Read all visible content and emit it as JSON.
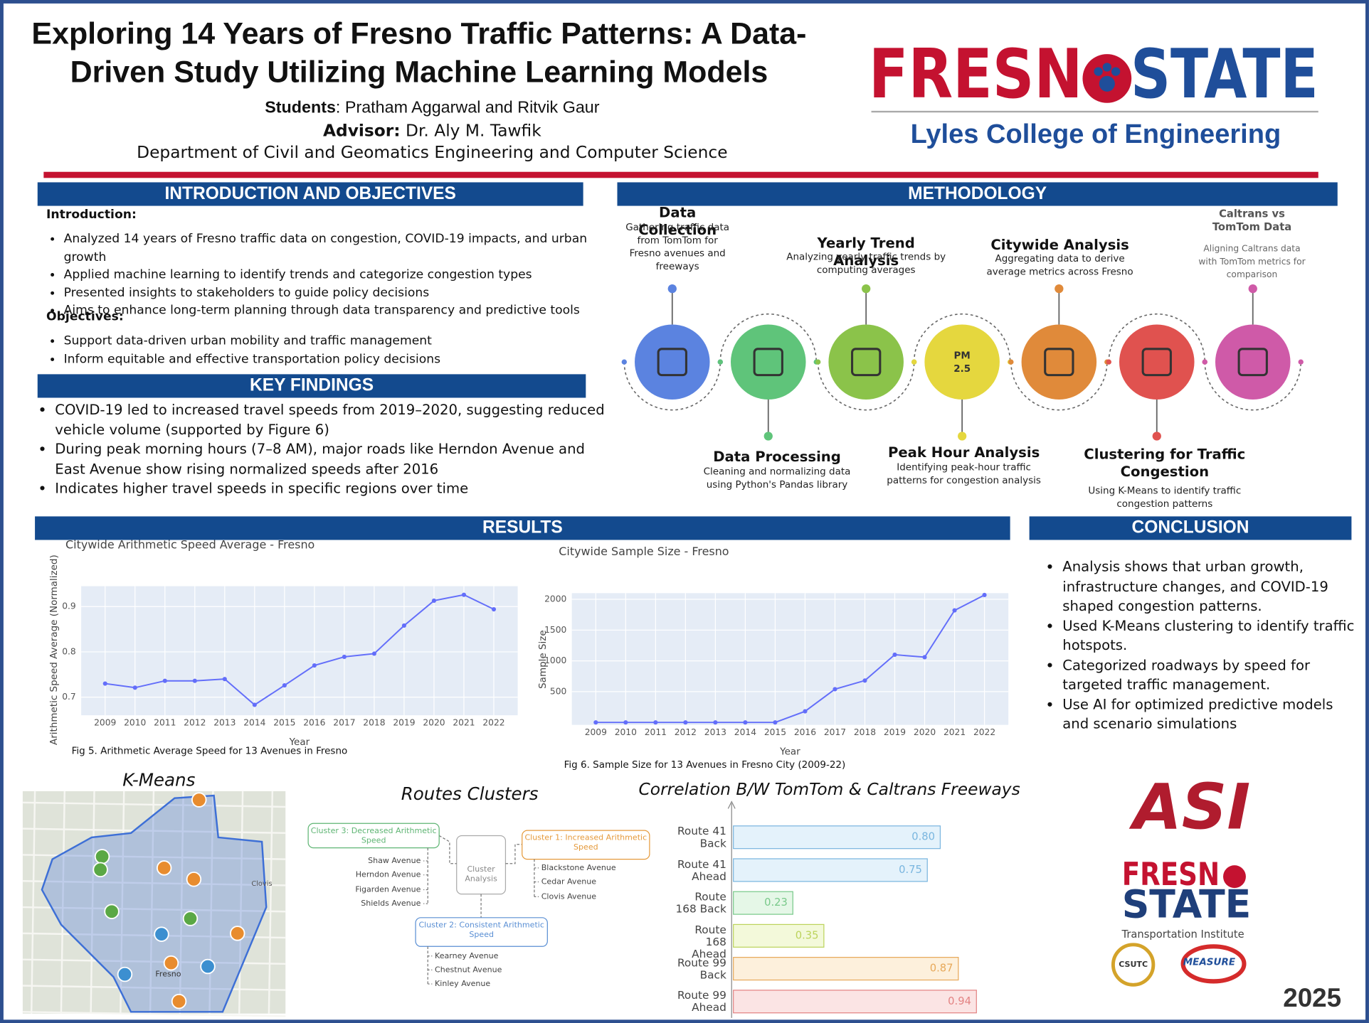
{
  "header": {
    "title": "Exploring 14 Years of Fresno Traffic Patterns: A Data-Driven Study Utilizing Machine Learning Models",
    "students_label": "Students",
    "students": ": Pratham Aggarwal and Ritvik Gaur",
    "advisor_label": "Advisor:",
    "advisor": " Dr. Aly M. Tawfik",
    "department": "Department of Civil and Geomatics Engineering and Computer Science",
    "logo": [
      "FRESN",
      "STATE"
    ],
    "college": "Lyles College of Engineering"
  },
  "introduction": {
    "heading": "INTRODUCTION AND OBJECTIVES",
    "intro_label": "Introduction:",
    "intro_items": [
      "Analyzed 14 years of Fresno traffic data on congestion, COVID-19 impacts, and urban growth",
      "Applied machine learning to identify trends and categorize congestion types",
      "Presented insights to stakeholders to guide policy decisions",
      "Aims to enhance long-term planning through data transparency and predictive tools"
    ],
    "objectives_label": "Objectives:",
    "objective_items": [
      "Support data-driven urban mobility and traffic management",
      "Inform equitable and effective transportation policy decisions"
    ]
  },
  "key_findings": {
    "heading": "KEY FINDINGS",
    "items": [
      "COVID-19 led to increased travel speeds from 2019–2020, suggesting reduced vehicle volume (supported by Figure 6)",
      "During peak morning hours (7–8 AM), major roads like Herndon Avenue and East Avenue show rising normalized speeds after 2016",
      "Indicates higher travel speeds in specific regions over time"
    ]
  },
  "methodology": {
    "heading": "METHODOLOGY",
    "steps": [
      {
        "title": "Data Collection",
        "text": "Gathering traffic data from TomTom for Fresno avenues and freeways"
      },
      {
        "title": "Data Processing",
        "text": "Cleaning and normalizing data using Python's Pandas library"
      },
      {
        "title": "Yearly Trend Analysis",
        "text": "Analyzing yearly traffic trends by computing averages"
      },
      {
        "title": "Peak Hour Analysis",
        "text": "Identifying peak-hour traffic patterns for congestion analysis"
      },
      {
        "title": "Citywide Analysis",
        "text": "Aggregating data to derive average metrics across Fresno"
      },
      {
        "title": "Clustering for Traffic Congestion",
        "text": "Using K-Means to identify traffic congestion patterns"
      },
      {
        "title": "Caltrans vs TomTom Data",
        "text": "Aligning Caltrans data with TomTom metrics for comparison"
      }
    ],
    "icon_label": [
      "PM",
      "2.5"
    ]
  },
  "results": {
    "heading": "RESULTS"
  },
  "conclusion": {
    "heading": "CONCLUSION",
    "items": [
      "Analysis shows that urban growth, infrastructure changes, and COVID-19 shaped congestion patterns.",
      "Used K-Means clustering to identify traffic hotspots.",
      "Categorized roadways by speed for targeted traffic management.",
      "Use AI for optimized predictive models and scenario simulations"
    ]
  },
  "chart_data": [
    {
      "type": "line",
      "title": "Citywide Arithmetic Speed Average - Fresno",
      "x": [
        2009,
        2010,
        2011,
        2012,
        2013,
        2014,
        2015,
        2016,
        2017,
        2018,
        2019,
        2020,
        2021,
        2022
      ],
      "values": [
        0.73,
        0.721,
        0.736,
        0.736,
        0.74,
        0.683,
        0.726,
        0.77,
        0.789,
        0.796,
        0.858,
        0.913,
        0.926,
        0.894
      ],
      "color": "#636efa",
      "xlim": [
        2008.2,
        2022.8
      ],
      "xticks": [
        2009,
        2010,
        2011,
        2012,
        2013,
        2014,
        2015,
        2016,
        2017,
        2018,
        2019,
        2020,
        2021,
        2022
      ],
      "ylim": [
        0.66,
        0.945
      ],
      "yticks": [
        0.7,
        0.8,
        0.9
      ],
      "grid": true,
      "xlabel": "Year",
      "ylabel": "Arithmetic Speed Average (Normalized)",
      "caption": "Fig 5. Arithmetic Average Speed for 13 Avenues in Fresno"
    },
    {
      "type": "line",
      "title": "Citywide Sample Size - Fresno",
      "x": [
        2009,
        2010,
        2011,
        2012,
        2013,
        2014,
        2015,
        2016,
        2017,
        2018,
        2019,
        2020,
        2021,
        2022
      ],
      "values": [
        0,
        0,
        0,
        0,
        0,
        0,
        0,
        180,
        540,
        680,
        1100,
        1060,
        1820,
        2070
      ],
      "color": "#636efa",
      "xlim": [
        2008.2,
        2022.8
      ],
      "xticks": [
        2009,
        2010,
        2011,
        2012,
        2013,
        2014,
        2015,
        2016,
        2017,
        2018,
        2019,
        2020,
        2021,
        2022
      ],
      "ylim": [
        -40,
        2100
      ],
      "yticks": [
        500,
        1000,
        1500,
        2000
      ],
      "grid": true,
      "xlabel": "Year",
      "ylabel": "Sample Size",
      "caption": "Fig 6. Sample Size for 13 Avenues in Fresno City (2009-22)"
    },
    {
      "type": "bar",
      "orientation": "horizontal",
      "title": "Correlation B/W TomTom & Caltrans Freeways",
      "categories": [
        "Route 41 Back",
        "Route 41 Ahead",
        "Route 168 Back",
        "Route 168 Ahead",
        "Route 99 Back",
        "Route 99 Ahead"
      ],
      "values": [
        0.8,
        0.75,
        0.23,
        0.35,
        0.87,
        0.94
      ],
      "value_labels": [
        "0.80",
        "0.75",
        "0.23",
        "0.35",
        "0.87",
        "0.94"
      ],
      "colors": [
        "#e4f2fb",
        "#e4f2fb",
        "#e5f7e7",
        "#f3f9da",
        "#fdf0dc",
        "#fbe4e4"
      ],
      "edge_colors": [
        "#7ab6df",
        "#7ab6df",
        "#79c98a",
        "#bcd35c",
        "#e7a95a",
        "#e38383"
      ],
      "xlim": [
        0,
        1.05
      ]
    }
  ],
  "kmeans": {
    "title": "K-Means",
    "map_labels": [
      "Fresno",
      "Clovis"
    ]
  },
  "routes": {
    "title": "Routes Clusters",
    "center": "Cluster Analysis",
    "clusters": [
      {
        "name": "Cluster 3: Decreased Arithmetic Speed",
        "routes": [
          "Shaw Avenue",
          "Herndon Avenue",
          "Figarden Avenue",
          "Shields Avenue"
        ]
      },
      {
        "name": "Cluster 1: Increased Arithmetic Speed",
        "routes": [
          "Blackstone Avenue",
          "Cedar Avenue",
          "Clovis Avenue"
        ]
      },
      {
        "name": "Cluster 2: Consistent Arithmetic Speed",
        "routes": [
          "Kearney Avenue",
          "Chestnut Avenue",
          "Kinley Avenue"
        ]
      }
    ]
  },
  "logos": {
    "asi": "ASI",
    "fresno_state": [
      "FRESN",
      "STATE"
    ],
    "institute": "Transportation Institute",
    "csutc": "CSUTC",
    "measure": "MEASURE"
  },
  "year": "2025"
}
